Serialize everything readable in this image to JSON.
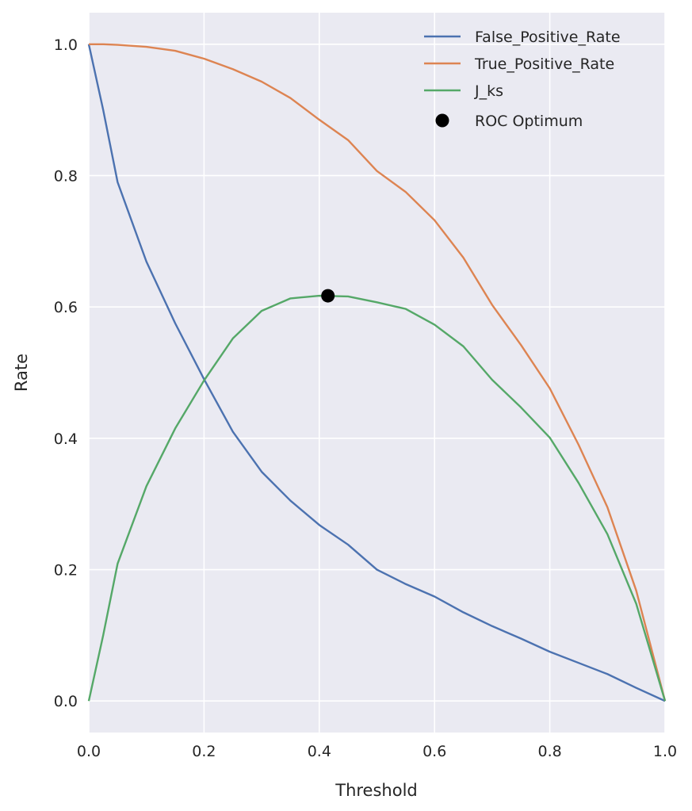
{
  "chart_data": {
    "type": "line",
    "xlabel": "Threshold",
    "ylabel": "Rate",
    "xlim": [
      0,
      1
    ],
    "ylim": [
      -0.048,
      1.048
    ],
    "xticks": [
      "0.0",
      "0.2",
      "0.4",
      "0.6",
      "0.8",
      "1.0"
    ],
    "yticks": [
      "0.0",
      "0.2",
      "0.4",
      "0.6",
      "0.8",
      "1.0"
    ],
    "grid": true,
    "legend_position": "top-right",
    "background": "#eaeaf2",
    "x": [
      0,
      0.025,
      0.05,
      0.1,
      0.15,
      0.2,
      0.25,
      0.3,
      0.35,
      0.4,
      0.45,
      0.5,
      0.55,
      0.6,
      0.65,
      0.7,
      0.75,
      0.8,
      0.85,
      0.9,
      0.95,
      1.0
    ],
    "series": [
      {
        "name": "False_Positive_Rate",
        "color": "#4c72b0",
        "values": [
          1.0,
          0.9,
          0.79,
          0.669,
          0.575,
          0.49,
          0.41,
          0.349,
          0.305,
          0.268,
          0.238,
          0.2,
          0.178,
          0.159,
          0.135,
          0.114,
          0.095,
          0.075,
          0.058,
          0.041,
          0.02,
          0
        ]
      },
      {
        "name": "True_Positive_Rate",
        "color": "#dd8452",
        "values": [
          1.0,
          1.0,
          0.999,
          0.996,
          0.99,
          0.978,
          0.962,
          0.943,
          0.918,
          0.885,
          0.854,
          0.807,
          0.775,
          0.732,
          0.675,
          0.603,
          0.542,
          0.476,
          0.39,
          0.295,
          0.168,
          0
        ]
      },
      {
        "name": "J_ks",
        "color": "#55a868",
        "values": [
          0,
          0.1,
          0.209,
          0.327,
          0.415,
          0.488,
          0.552,
          0.594,
          0.613,
          0.617,
          0.616,
          0.607,
          0.597,
          0.573,
          0.54,
          0.489,
          0.447,
          0.401,
          0.332,
          0.254,
          0.148,
          0
        ]
      }
    ],
    "points": [
      {
        "name": "ROC Optimum",
        "color": "#000000",
        "x": 0.415,
        "y": 0.617
      }
    ]
  }
}
